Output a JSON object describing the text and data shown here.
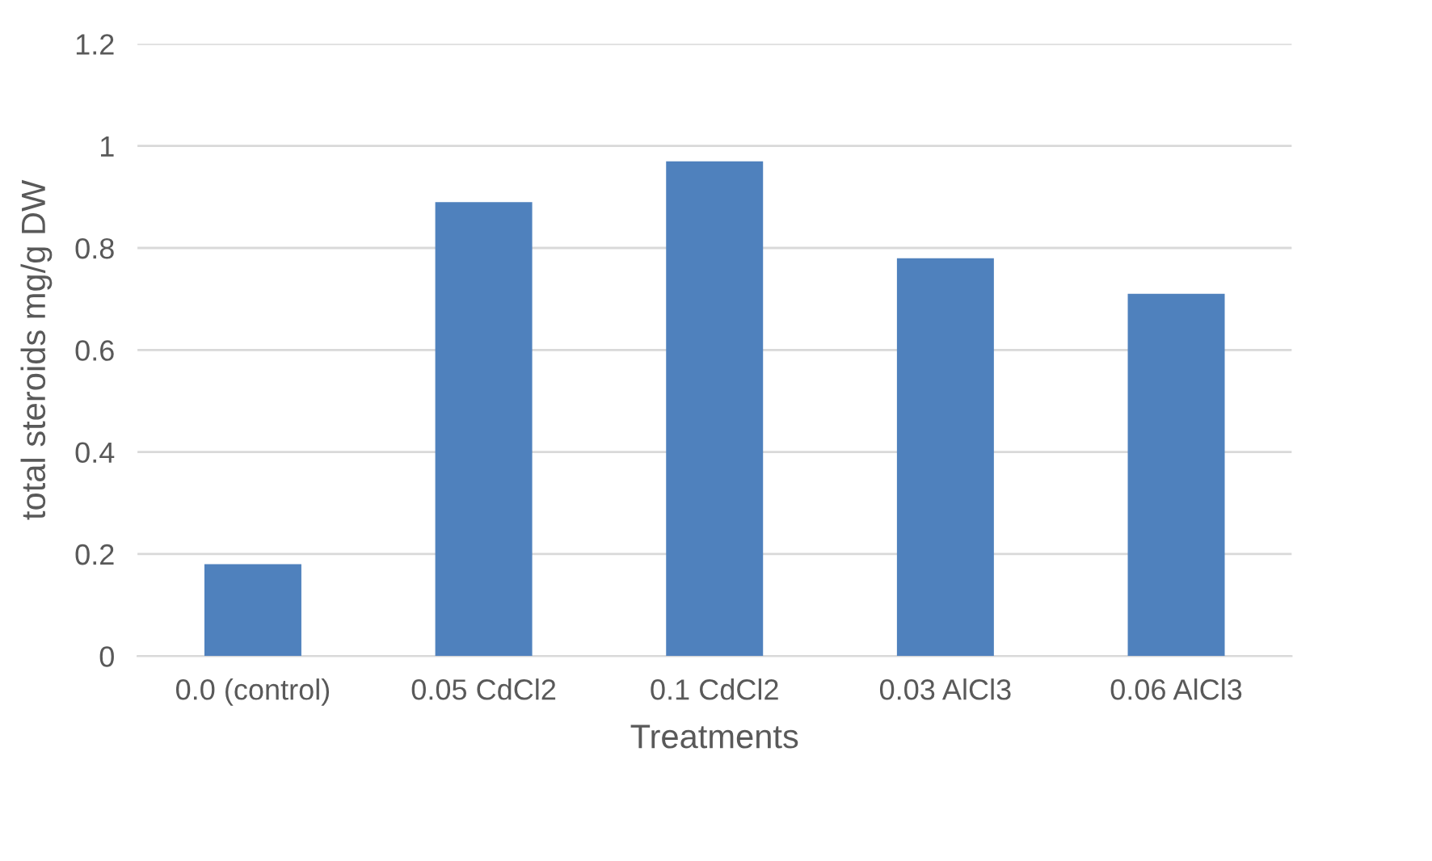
{
  "chart_data": {
    "type": "bar",
    "xlabel": "Treatments",
    "ylabel": "total steroids mg/g DW",
    "categories": [
      "0.0 (control)",
      "0.05 CdCl2",
      "0.1 CdCl2",
      "0.03 AlCl3",
      "0.06 AlCl3"
    ],
    "values": [
      0.18,
      0.89,
      0.97,
      0.78,
      0.71
    ],
    "color": "#4f81bd",
    "ylim": [
      0,
      1.2
    ],
    "yticks": [
      {
        "value": 0,
        "label": "0"
      },
      0.2,
      0.4,
      0.6,
      0.8,
      {
        "value": 1,
        "label": "1"
      },
      1.2
    ],
    "grid": "y"
  }
}
